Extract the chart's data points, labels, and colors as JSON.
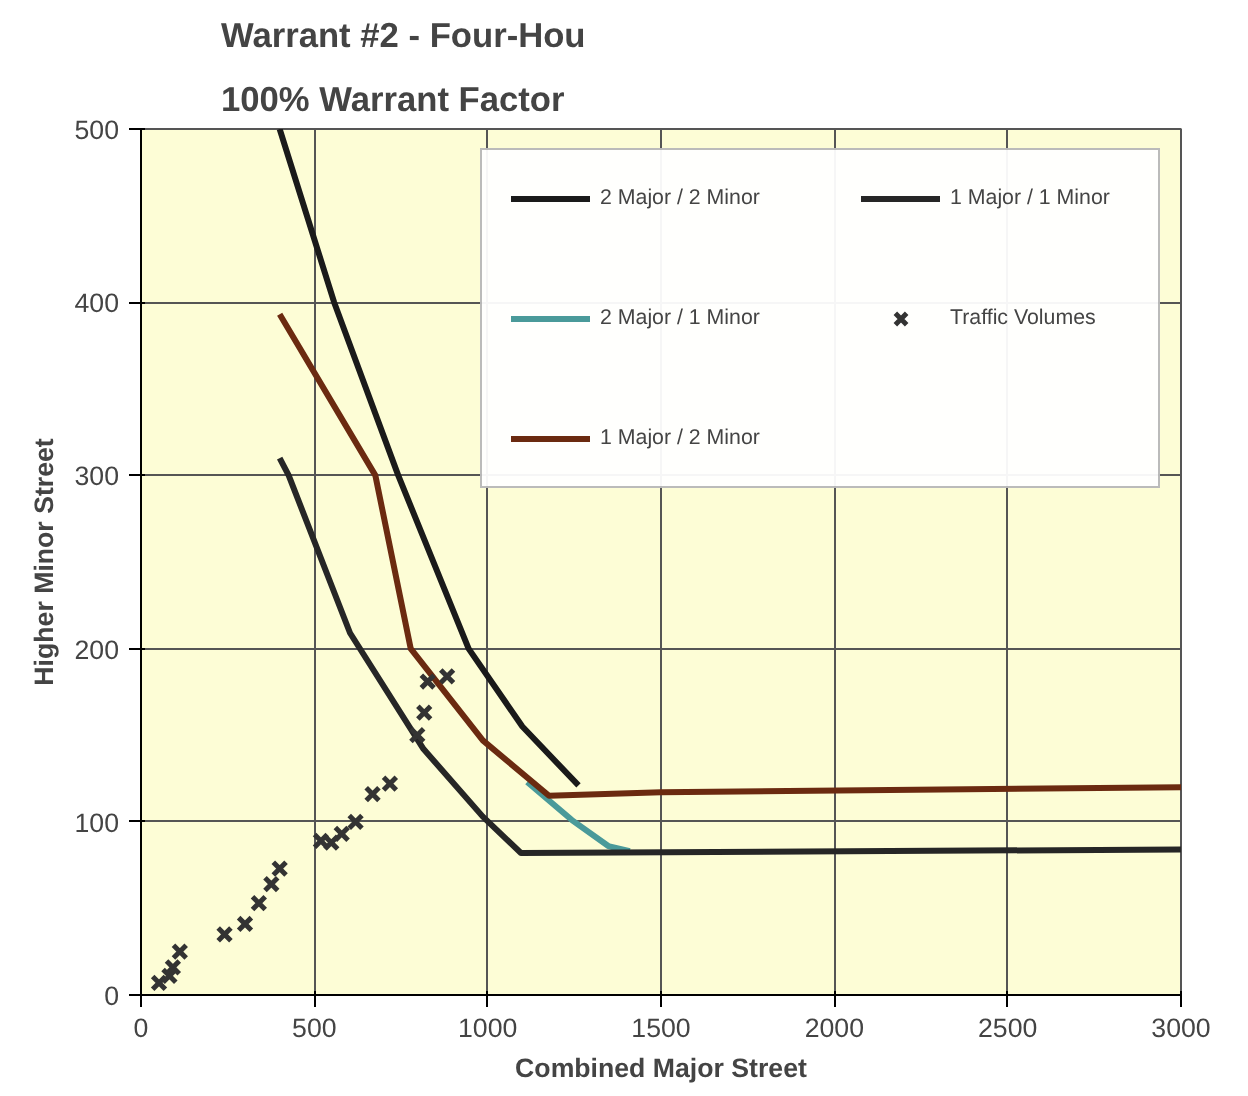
{
  "chart_data": {
    "type": "line",
    "title": "Warrant #2 - Four-Hou",
    "subtitle": "100% Warrant Factor",
    "xlabel": "Combined Major Street",
    "ylabel": "Higher Minor Street",
    "xlim": [
      0,
      3000
    ],
    "ylim": [
      0,
      500
    ],
    "xticks": [
      0,
      500,
      1000,
      1500,
      2000,
      2500,
      3000
    ],
    "yticks": [
      0,
      100,
      200,
      300,
      400,
      500
    ],
    "grid": true,
    "legend": "top right",
    "line_style": "solid",
    "series": [
      {
        "name": "2 Major / 2 Minor",
        "color": "#1a1a1a",
        "x": [
          400,
          557,
          742,
          945,
          1100,
          1262
        ],
        "values": [
          500,
          400,
          300,
          200,
          155,
          121
        ]
      },
      {
        "name": "2 Major / 1 Minor",
        "color": "#4a9a9a",
        "x": [
          1114,
          1243,
          1348,
          1410
        ],
        "values": [
          123,
          101,
          86,
          83
        ]
      },
      {
        "name": "1 Major / 2 Minor",
        "color": "#6b2a10",
        "x": [
          400,
          676,
          778,
          986,
          1177,
          1500,
          3000
        ],
        "values": [
          393,
          300,
          200,
          147,
          115,
          117,
          120
        ]
      },
      {
        "name": "1 Major / 1 Minor",
        "color": "#262626",
        "x": [
          400,
          426,
          603,
          815,
          986,
          1096,
          3000
        ],
        "values": [
          310,
          300,
          209,
          142,
          103,
          82,
          84
        ]
      },
      {
        "name": "Traffic Volumes",
        "type": "scatter",
        "marker": "cross",
        "color": "#333333",
        "x": [
          52,
          82,
          92,
          112,
          241,
          300,
          340,
          376,
          400,
          519,
          549,
          579,
          619,
          668,
          718,
          797,
          817,
          827,
          883
        ],
        "values": [
          7,
          11,
          16,
          25,
          35,
          41,
          53,
          64,
          73,
          89,
          88,
          93,
          100,
          116,
          122,
          150,
          163,
          181,
          184
        ]
      }
    ]
  }
}
